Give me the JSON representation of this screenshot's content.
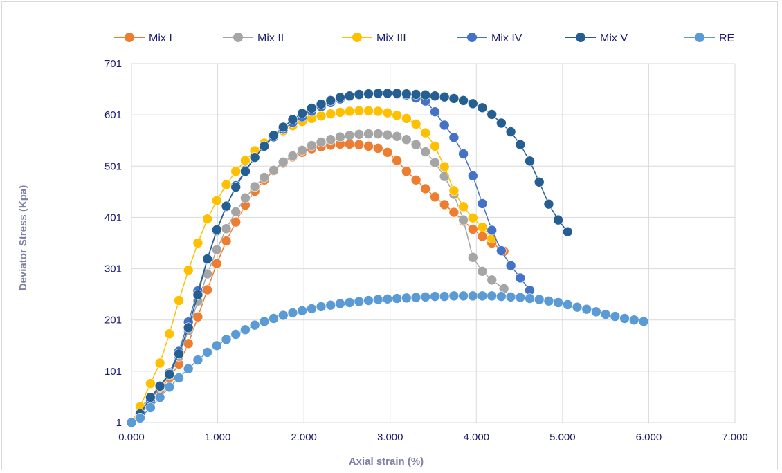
{
  "chart_data": {
    "type": "line",
    "title": "",
    "xlabel": "Axial strain (%)",
    "ylabel": "Deviator Stress (Kpa)",
    "xlim": [
      0,
      7
    ],
    "ylim": [
      1,
      701
    ],
    "x_ticks": [
      "0.000",
      "1.000",
      "2.000",
      "3.000",
      "4.000",
      "5.000",
      "6.000",
      "7.000"
    ],
    "y_ticks": [
      "1",
      "101",
      "201",
      "301",
      "401",
      "501",
      "601",
      "701"
    ],
    "grid": "horizontal and vertical",
    "legend_position": "top",
    "series": [
      {
        "name": "Mix I",
        "color": "#ED7D31",
        "points": [
          [
            0,
            1
          ],
          [
            0.1,
            30
          ],
          [
            0.22,
            48
          ],
          [
            0.33,
            65
          ],
          [
            0.44,
            88
          ],
          [
            0.55,
            115
          ],
          [
            0.66,
            155
          ],
          [
            0.77,
            207
          ],
          [
            0.88,
            260
          ],
          [
            0.99,
            311
          ],
          [
            1.1,
            355
          ],
          [
            1.21,
            392
          ],
          [
            1.32,
            425
          ],
          [
            1.43,
            452
          ],
          [
            1.54,
            474
          ],
          [
            1.65,
            492
          ],
          [
            1.76,
            507
          ],
          [
            1.87,
            519
          ],
          [
            1.98,
            528
          ],
          [
            2.09,
            535
          ],
          [
            2.2,
            539
          ],
          [
            2.31,
            542
          ],
          [
            2.42,
            544
          ],
          [
            2.53,
            544
          ],
          [
            2.64,
            543
          ],
          [
            2.75,
            540
          ],
          [
            2.86,
            536
          ],
          [
            2.97,
            528
          ],
          [
            3.08,
            512
          ],
          [
            3.19,
            491
          ],
          [
            3.3,
            474
          ],
          [
            3.41,
            457
          ],
          [
            3.52,
            441
          ],
          [
            3.63,
            426
          ],
          [
            3.74,
            411
          ],
          [
            3.85,
            394
          ],
          [
            3.96,
            378
          ],
          [
            4.07,
            364
          ],
          [
            4.18,
            351
          ],
          [
            4.32,
            335
          ]
        ]
      },
      {
        "name": "Mix II",
        "color": "#A5A5A5",
        "points": [
          [
            0,
            1
          ],
          [
            0.1,
            30
          ],
          [
            0.22,
            50
          ],
          [
            0.33,
            70
          ],
          [
            0.44,
            93
          ],
          [
            0.55,
            130
          ],
          [
            0.66,
            180
          ],
          [
            0.77,
            238
          ],
          [
            0.88,
            291
          ],
          [
            0.99,
            338
          ],
          [
            1.1,
            379
          ],
          [
            1.21,
            412
          ],
          [
            1.32,
            439
          ],
          [
            1.43,
            461
          ],
          [
            1.54,
            479
          ],
          [
            1.65,
            493
          ],
          [
            1.76,
            509
          ],
          [
            1.87,
            521
          ],
          [
            1.98,
            532
          ],
          [
            2.09,
            541
          ],
          [
            2.2,
            548
          ],
          [
            2.31,
            553
          ],
          [
            2.42,
            558
          ],
          [
            2.53,
            561
          ],
          [
            2.64,
            563
          ],
          [
            2.75,
            564
          ],
          [
            2.86,
            564
          ],
          [
            2.97,
            562
          ],
          [
            3.08,
            559
          ],
          [
            3.19,
            553
          ],
          [
            3.3,
            543
          ],
          [
            3.41,
            529
          ],
          [
            3.52,
            508
          ],
          [
            3.63,
            481
          ],
          [
            3.74,
            446
          ],
          [
            3.85,
            396
          ],
          [
            3.96,
            323
          ],
          [
            4.07,
            296
          ],
          [
            4.18,
            279
          ],
          [
            4.32,
            262
          ]
        ]
      },
      {
        "name": "Mix III",
        "color": "#FFC000",
        "points": [
          [
            0,
            1
          ],
          [
            0.1,
            32
          ],
          [
            0.22,
            77
          ],
          [
            0.33,
            117
          ],
          [
            0.44,
            174
          ],
          [
            0.55,
            239
          ],
          [
            0.66,
            298
          ],
          [
            0.77,
            351
          ],
          [
            0.88,
            398
          ],
          [
            0.99,
            434
          ],
          [
            1.1,
            465
          ],
          [
            1.21,
            491
          ],
          [
            1.32,
            512
          ],
          [
            1.43,
            531
          ],
          [
            1.54,
            546
          ],
          [
            1.65,
            559
          ],
          [
            1.76,
            570
          ],
          [
            1.87,
            580
          ],
          [
            1.98,
            588
          ],
          [
            2.09,
            594
          ],
          [
            2.2,
            599
          ],
          [
            2.31,
            603
          ],
          [
            2.42,
            606
          ],
          [
            2.53,
            608
          ],
          [
            2.64,
            609
          ],
          [
            2.75,
            609
          ],
          [
            2.86,
            608
          ],
          [
            2.97,
            605
          ],
          [
            3.08,
            600
          ],
          [
            3.19,
            594
          ],
          [
            3.3,
            583
          ],
          [
            3.41,
            566
          ],
          [
            3.52,
            540
          ],
          [
            3.63,
            500
          ],
          [
            3.74,
            453
          ],
          [
            3.85,
            422
          ],
          [
            3.96,
            400
          ],
          [
            4.07,
            382
          ],
          [
            4.18,
            360
          ]
        ]
      },
      {
        "name": "Mix IV",
        "color": "#4472C4",
        "points": [
          [
            0,
            1
          ],
          [
            0.1,
            15
          ],
          [
            0.22,
            45
          ],
          [
            0.33,
            72
          ],
          [
            0.44,
            98
          ],
          [
            0.55,
            140
          ],
          [
            0.66,
            197
          ],
          [
            0.77,
            258
          ],
          [
            0.88,
            319
          ],
          [
            0.99,
            375
          ],
          [
            1.1,
            422
          ],
          [
            1.21,
            463
          ],
          [
            1.32,
            493
          ],
          [
            1.43,
            518
          ],
          [
            1.54,
            540
          ],
          [
            1.65,
            558
          ],
          [
            1.76,
            573
          ],
          [
            1.87,
            586
          ],
          [
            1.98,
            597
          ],
          [
            2.09,
            608
          ],
          [
            2.2,
            617
          ],
          [
            2.31,
            625
          ],
          [
            2.42,
            632
          ],
          [
            2.53,
            637
          ],
          [
            2.64,
            640
          ],
          [
            2.75,
            642
          ],
          [
            2.86,
            643
          ],
          [
            2.97,
            643
          ],
          [
            3.08,
            642
          ],
          [
            3.19,
            640
          ],
          [
            3.3,
            634
          ],
          [
            3.41,
            628
          ],
          [
            3.52,
            607
          ],
          [
            3.63,
            581
          ],
          [
            3.74,
            557
          ],
          [
            3.85,
            525
          ],
          [
            3.96,
            482
          ],
          [
            4.07,
            428
          ],
          [
            4.18,
            376
          ],
          [
            4.29,
            336
          ],
          [
            4.4,
            307
          ],
          [
            4.51,
            283
          ],
          [
            4.62,
            259
          ]
        ]
      },
      {
        "name": "Mix V",
        "color": "#255E91",
        "points": [
          [
            0,
            1
          ],
          [
            0.1,
            18
          ],
          [
            0.22,
            50
          ],
          [
            0.33,
            72
          ],
          [
            0.44,
            95
          ],
          [
            0.55,
            135
          ],
          [
            0.66,
            186
          ],
          [
            0.77,
            250
          ],
          [
            0.88,
            320
          ],
          [
            0.99,
            377
          ],
          [
            1.1,
            423
          ],
          [
            1.21,
            460
          ],
          [
            1.32,
            491
          ],
          [
            1.43,
            518
          ],
          [
            1.54,
            540
          ],
          [
            1.65,
            561
          ],
          [
            1.76,
            577
          ],
          [
            1.87,
            592
          ],
          [
            1.98,
            604
          ],
          [
            2.09,
            614
          ],
          [
            2.2,
            622
          ],
          [
            2.31,
            629
          ],
          [
            2.42,
            635
          ],
          [
            2.53,
            638
          ],
          [
            2.64,
            641
          ],
          [
            2.75,
            642
          ],
          [
            2.86,
            643
          ],
          [
            2.97,
            643
          ],
          [
            3.08,
            643
          ],
          [
            3.19,
            642
          ],
          [
            3.3,
            641
          ],
          [
            3.41,
            640
          ],
          [
            3.52,
            638
          ],
          [
            3.63,
            636
          ],
          [
            3.74,
            633
          ],
          [
            3.85,
            629
          ],
          [
            3.96,
            623
          ],
          [
            4.07,
            615
          ],
          [
            4.18,
            602
          ],
          [
            4.29,
            585
          ],
          [
            4.4,
            568
          ],
          [
            4.51,
            543
          ],
          [
            4.62,
            511
          ],
          [
            4.73,
            470
          ],
          [
            4.84,
            427
          ],
          [
            4.95,
            396
          ],
          [
            5.06,
            373
          ]
        ]
      },
      {
        "name": "RE",
        "color": "#5B9BD5",
        "points": [
          [
            0,
            1
          ],
          [
            0.1,
            10
          ],
          [
            0.22,
            30
          ],
          [
            0.33,
            50
          ],
          [
            0.44,
            70
          ],
          [
            0.55,
            88
          ],
          [
            0.66,
            106
          ],
          [
            0.77,
            123
          ],
          [
            0.88,
            138
          ],
          [
            0.99,
            151
          ],
          [
            1.1,
            163
          ],
          [
            1.21,
            173
          ],
          [
            1.32,
            182
          ],
          [
            1.43,
            191
          ],
          [
            1.54,
            198
          ],
          [
            1.65,
            204
          ],
          [
            1.76,
            210
          ],
          [
            1.87,
            215
          ],
          [
            1.98,
            219
          ],
          [
            2.09,
            223
          ],
          [
            2.2,
            227
          ],
          [
            2.31,
            230
          ],
          [
            2.42,
            233
          ],
          [
            2.53,
            235
          ],
          [
            2.64,
            237
          ],
          [
            2.75,
            239
          ],
          [
            2.86,
            241
          ],
          [
            2.97,
            242
          ],
          [
            3.08,
            243
          ],
          [
            3.19,
            244
          ],
          [
            3.3,
            245
          ],
          [
            3.41,
            246
          ],
          [
            3.52,
            247
          ],
          [
            3.63,
            247
          ],
          [
            3.74,
            248
          ],
          [
            3.85,
            248
          ],
          [
            3.96,
            248
          ],
          [
            4.07,
            248
          ],
          [
            4.18,
            248
          ],
          [
            4.29,
            247
          ],
          [
            4.4,
            246
          ],
          [
            4.51,
            245
          ],
          [
            4.62,
            243
          ],
          [
            4.73,
            241
          ],
          [
            4.84,
            238
          ],
          [
            4.95,
            235
          ],
          [
            5.06,
            231
          ],
          [
            5.17,
            226
          ],
          [
            5.28,
            222
          ],
          [
            5.39,
            217
          ],
          [
            5.5,
            212
          ],
          [
            5.61,
            208
          ],
          [
            5.72,
            204
          ],
          [
            5.83,
            201
          ],
          [
            5.94,
            198
          ]
        ]
      }
    ]
  }
}
